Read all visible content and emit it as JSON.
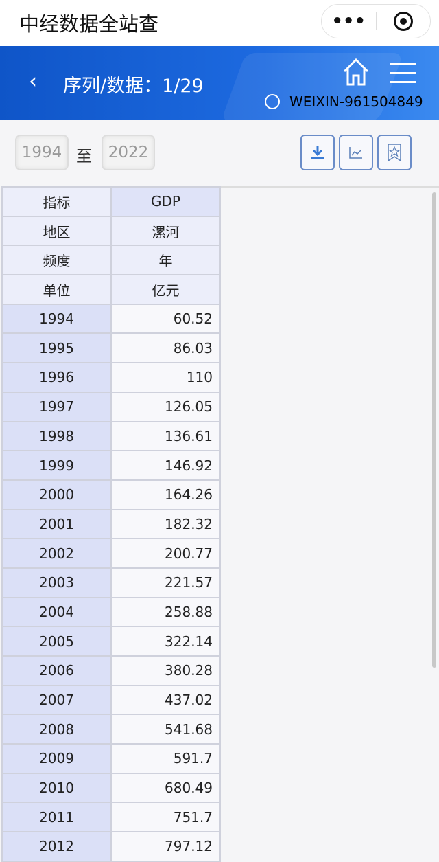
{
  "app": {
    "title": "中经数据全站查",
    "more_icon": "more-dots-icon",
    "close_icon": "target-icon"
  },
  "header": {
    "back_icon": "chevron-left-icon",
    "title": "序列/数据：1/29",
    "home_icon": "home-icon",
    "menu_icon": "hamburger-menu-icon",
    "user_icon": "user-icon",
    "user": "WEIXIN-961504849"
  },
  "filter": {
    "from": "1994",
    "to_label": "至",
    "to": "2022",
    "buttons": [
      {
        "icon": "download-icon"
      },
      {
        "icon": "line-chart-icon"
      },
      {
        "icon": "bookmark-star-icon"
      }
    ]
  },
  "meta": [
    {
      "label": "指标",
      "value": "GDP"
    },
    {
      "label": "地区",
      "value": "漯河"
    },
    {
      "label": "频度",
      "value": "年"
    },
    {
      "label": "单位",
      "value": "亿元"
    }
  ],
  "rows": [
    {
      "year": "1994",
      "value": "60.52"
    },
    {
      "year": "1995",
      "value": "86.03"
    },
    {
      "year": "1996",
      "value": "110"
    },
    {
      "year": "1997",
      "value": "126.05"
    },
    {
      "year": "1998",
      "value": "136.61"
    },
    {
      "year": "1999",
      "value": "146.92"
    },
    {
      "year": "2000",
      "value": "164.26"
    },
    {
      "year": "2001",
      "value": "182.32"
    },
    {
      "year": "2002",
      "value": "200.77"
    },
    {
      "year": "2003",
      "value": "221.57"
    },
    {
      "year": "2004",
      "value": "258.88"
    },
    {
      "year": "2005",
      "value": "322.14"
    },
    {
      "year": "2006",
      "value": "380.28"
    },
    {
      "year": "2007",
      "value": "437.02"
    },
    {
      "year": "2008",
      "value": "541.68"
    },
    {
      "year": "2009",
      "value": "591.7"
    },
    {
      "year": "2010",
      "value": "680.49"
    },
    {
      "year": "2011",
      "value": "751.7"
    },
    {
      "year": "2012",
      "value": "797.12"
    }
  ]
}
